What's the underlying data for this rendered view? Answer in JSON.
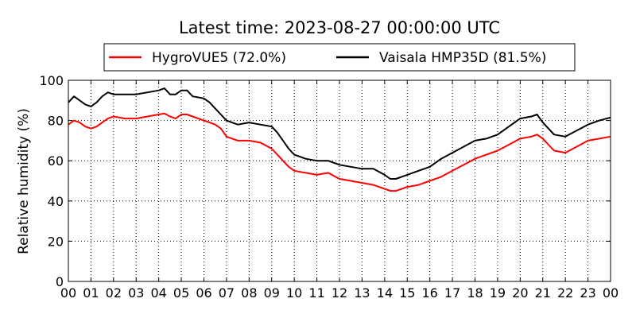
{
  "chart_data": {
    "type": "line",
    "title": "Latest time: 2023-08-27 00:00:00 UTC",
    "ylabel": "Relative humidity (%)",
    "xlabel": "",
    "xlim": [
      0,
      24
    ],
    "ylim": [
      0,
      100
    ],
    "grid": true,
    "legend_position": "top-center",
    "x_tick_labels": [
      "00",
      "01",
      "02",
      "03",
      "04",
      "05",
      "06",
      "07",
      "08",
      "09",
      "10",
      "11",
      "12",
      "13",
      "14",
      "15",
      "16",
      "17",
      "18",
      "19",
      "20",
      "21",
      "22",
      "23",
      "00"
    ],
    "y_tick_labels": [
      "0",
      "20",
      "40",
      "60",
      "80",
      "100"
    ],
    "series": [
      {
        "name": "HygroVUE5 (72.0%)",
        "color": "#ff0000",
        "x": [
          0,
          0.25,
          0.5,
          0.75,
          1,
          1.25,
          1.5,
          1.75,
          2,
          2.5,
          3,
          3.5,
          4,
          4.25,
          4.5,
          4.75,
          5,
          5.25,
          5.5,
          6,
          6.25,
          6.5,
          6.75,
          7,
          7.5,
          8,
          8.5,
          9,
          9.25,
          9.5,
          9.75,
          10,
          10.5,
          11,
          11.5,
          12,
          12.5,
          13,
          13.5,
          14,
          14.25,
          14.5,
          15,
          15.5,
          16,
          16.5,
          17,
          17.5,
          18,
          18.5,
          19,
          19.5,
          20,
          20.5,
          20.75,
          21,
          21.25,
          21.5,
          22,
          22.5,
          23,
          23.5,
          24
        ],
        "values": [
          78,
          80,
          79,
          77,
          76,
          77,
          79,
          81,
          82,
          81,
          81,
          82,
          83,
          83.5,
          82,
          81,
          83,
          83,
          82,
          80,
          79,
          78,
          76,
          72,
          70,
          70,
          69,
          66,
          63,
          60,
          57,
          55,
          54,
          53,
          54,
          51,
          50,
          49,
          48,
          46,
          45,
          45,
          47,
          48,
          50,
          52,
          55,
          58,
          61,
          63,
          65,
          68,
          71,
          72,
          73,
          71,
          68,
          65,
          64,
          67,
          70,
          71,
          72
        ]
      },
      {
        "name": "Vaisala HMP35D (81.5%)",
        "color": "#000000",
        "x": [
          0,
          0.25,
          0.5,
          0.75,
          1,
          1.25,
          1.5,
          1.75,
          2,
          2.5,
          3,
          3.5,
          4,
          4.25,
          4.5,
          4.75,
          5,
          5.25,
          5.5,
          6,
          6.25,
          6.5,
          6.75,
          7,
          7.5,
          8,
          8.5,
          9,
          9.25,
          9.5,
          9.75,
          10,
          10.5,
          11,
          11.5,
          12,
          12.5,
          13,
          13.5,
          14,
          14.25,
          14.5,
          15,
          15.5,
          16,
          16.5,
          17,
          17.5,
          18,
          18.5,
          19,
          19.5,
          20,
          20.5,
          20.75,
          21,
          21.25,
          21.5,
          22,
          22.5,
          23,
          23.5,
          24
        ],
        "values": [
          89,
          92,
          90,
          88,
          87,
          89,
          92,
          94,
          93,
          93,
          93,
          94,
          95,
          96,
          93,
          93,
          95,
          95,
          92,
          91,
          89,
          86,
          83,
          80,
          78,
          79,
          78,
          77,
          74,
          70,
          66,
          63,
          61,
          60,
          60,
          58,
          57,
          56,
          56,
          53,
          51,
          51,
          53,
          55,
          57,
          61,
          64,
          67,
          70,
          71,
          73,
          77,
          81,
          82,
          83,
          79,
          76,
          73,
          72,
          75,
          78,
          80,
          81.5
        ]
      }
    ]
  }
}
